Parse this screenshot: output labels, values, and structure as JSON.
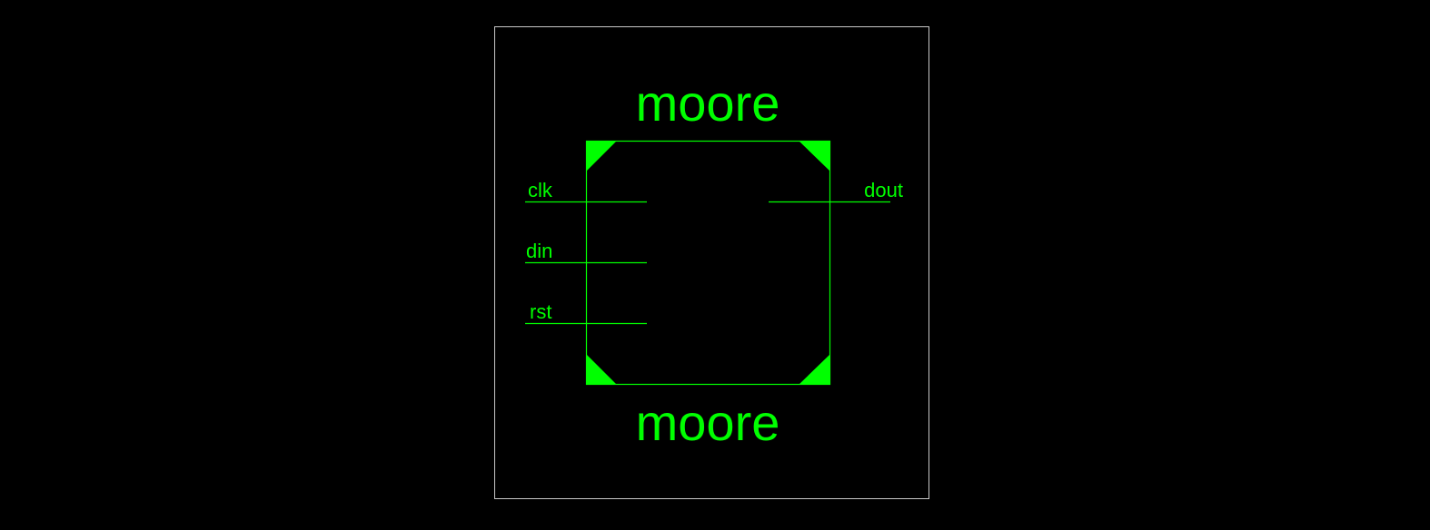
{
  "colors": {
    "background": "#000000",
    "symbol": "#00ff00",
    "frame": "#c8c8c8"
  },
  "symbol": {
    "cell_name": "moore",
    "instance_name": "moore"
  },
  "ports": {
    "inputs": [
      "clk",
      "din",
      "rst"
    ],
    "outputs": [
      "dout"
    ]
  }
}
